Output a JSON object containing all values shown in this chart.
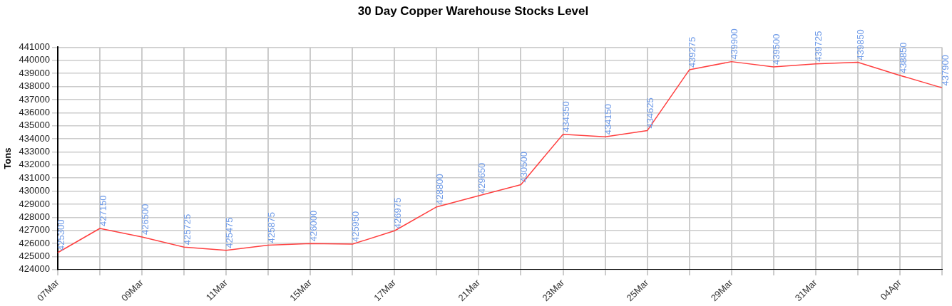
{
  "chart_data": {
    "type": "line",
    "title": "30 Day Copper Warehouse Stocks Level",
    "ylabel": "Tons",
    "categories": [
      "07Mar",
      null,
      "09Mar",
      null,
      "11Mar",
      null,
      "15Mar",
      null,
      "17Mar",
      null,
      "21Mar",
      null,
      "23Mar",
      null,
      "25Mar",
      null,
      "29Mar",
      null,
      "31Mar",
      null,
      "04Apr",
      null
    ],
    "series": [
      {
        "color": "#ff4040",
        "values": [
          425300,
          427150,
          426500,
          425725,
          425475,
          425875,
          426000,
          425950,
          426975,
          428800,
          429650,
          430500,
          434350,
          434150,
          434625,
          439275,
          439900,
          439500,
          439725,
          439850,
          438850,
          437900
        ]
      }
    ],
    "ylim": [
      424000,
      441000
    ],
    "yticks": [
      424000,
      425000,
      426000,
      427000,
      428000,
      429000,
      430000,
      431000,
      432000,
      433000,
      434000,
      435000,
      436000,
      437000,
      438000,
      439000,
      440000,
      441000
    ],
    "grid": true,
    "legend": false,
    "marker": "none",
    "line_style": "solid",
    "data_labels": true
  }
}
